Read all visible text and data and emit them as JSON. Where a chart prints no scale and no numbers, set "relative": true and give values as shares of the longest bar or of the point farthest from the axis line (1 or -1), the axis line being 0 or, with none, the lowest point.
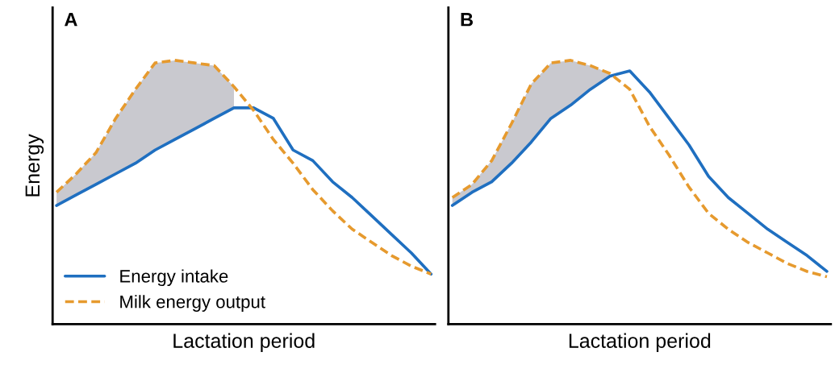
{
  "chart_data": [
    {
      "type": "line",
      "title": "A",
      "xlabel": "Lactation period",
      "ylabel": "Energy",
      "relative": true,
      "tick_labels": false,
      "legend": "bottom left",
      "grid": false,
      "categories": [
        null,
        null,
        null,
        null,
        null,
        null,
        null,
        null,
        null,
        null,
        null,
        null,
        null,
        null,
        null,
        null,
        null,
        null,
        null,
        null
      ],
      "series": [
        {
          "name": "Energy intake",
          "color": "#1f6fc0",
          "line_style": "solid",
          "values": [
            0.45,
            0.49,
            0.53,
            0.57,
            0.61,
            0.66,
            0.7,
            0.74,
            0.78,
            0.82,
            0.82,
            0.78,
            0.66,
            0.62,
            0.54,
            0.48,
            0.41,
            0.34,
            0.27,
            0.19
          ]
        },
        {
          "name": "Milk energy output",
          "color": "#e69a2e",
          "line_style": "dashed",
          "values": [
            0.5,
            0.57,
            0.65,
            0.78,
            0.89,
            0.99,
            1.0,
            0.99,
            0.98,
            0.9,
            0.81,
            0.7,
            0.61,
            0.51,
            0.43,
            0.36,
            0.31,
            0.26,
            0.22,
            0.19
          ],
          "lower": [
            0.45,
            0.49,
            0.53,
            0.57,
            0.61,
            0.66,
            0.7,
            0.74,
            0.78,
            0.82,
            null,
            null,
            null,
            null,
            null,
            null,
            null,
            null,
            null,
            null
          ],
          "upper": [
            0.5,
            0.57,
            0.65,
            0.78,
            0.89,
            0.99,
            1.0,
            0.99,
            0.98,
            0.9,
            null,
            null,
            null,
            null,
            null,
            null,
            null,
            null,
            null,
            null
          ]
        }
      ]
    },
    {
      "type": "line",
      "title": "B",
      "xlabel": "Lactation period",
      "relative": true,
      "tick_labels": false,
      "legend": false,
      "grid": false,
      "categories": [
        null,
        null,
        null,
        null,
        null,
        null,
        null,
        null,
        null,
        null,
        null,
        null,
        null,
        null,
        null,
        null,
        null,
        null,
        null,
        null
      ],
      "series": [
        {
          "color": "#1f6fc0",
          "line_style": "solid",
          "values": [
            0.45,
            0.5,
            0.54,
            0.61,
            0.69,
            0.78,
            0.83,
            0.89,
            0.94,
            0.96,
            0.88,
            0.78,
            0.68,
            0.56,
            0.48,
            0.42,
            0.36,
            0.31,
            0.26,
            0.2
          ]
        },
        {
          "color": "#e69a2e",
          "line_style": "dashed",
          "values": [
            0.48,
            0.53,
            0.62,
            0.76,
            0.91,
            0.99,
            1.0,
            0.98,
            0.95,
            0.89,
            0.75,
            0.64,
            0.52,
            0.42,
            0.36,
            0.31,
            0.27,
            0.23,
            0.2,
            0.18
          ],
          "lower": [
            0.45,
            0.5,
            0.54,
            0.61,
            0.69,
            0.78,
            0.83,
            0.89,
            0.94,
            null,
            null,
            null,
            null,
            null,
            null,
            null,
            null,
            null,
            null,
            null
          ],
          "upper": [
            0.48,
            0.53,
            0.62,
            0.76,
            0.91,
            0.99,
            1.0,
            0.98,
            0.95,
            null,
            null,
            null,
            null,
            null,
            null,
            null,
            null,
            null,
            null,
            null
          ]
        }
      ]
    }
  ]
}
